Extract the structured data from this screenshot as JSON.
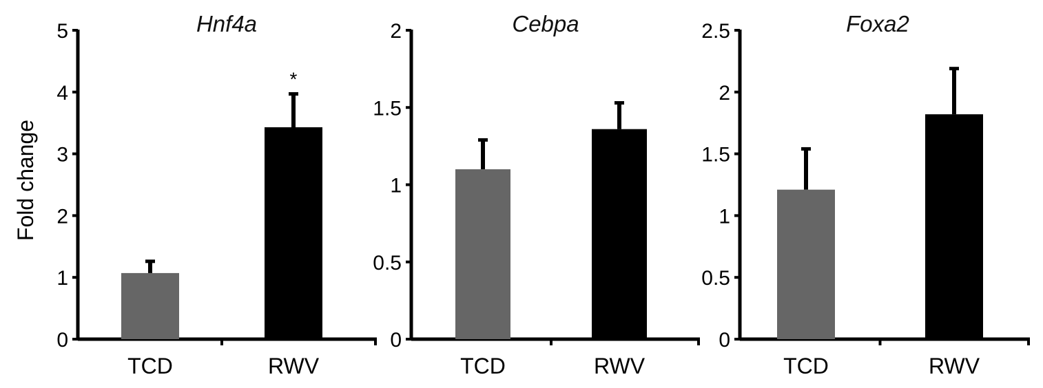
{
  "figure": {
    "ylabel": "Fold change"
  },
  "chart_data": [
    {
      "type": "bar",
      "title": "Hnf4a",
      "categories": [
        "TCD",
        "RWV"
      ],
      "values": [
        1.07,
        3.43
      ],
      "errors": [
        0.19,
        0.54
      ],
      "colors": [
        "#666666",
        "#000000"
      ],
      "significance": [
        "",
        "*"
      ],
      "ylim": [
        0,
        5
      ],
      "yticks": [
        0,
        1,
        2,
        3,
        4,
        5
      ],
      "ytick_labels": [
        "0",
        "1",
        "2",
        "3",
        "4",
        "5"
      ],
      "ylabel": "Fold change",
      "grid": false
    },
    {
      "type": "bar",
      "title": "Cebpa",
      "categories": [
        "TCD",
        "RWV"
      ],
      "values": [
        1.1,
        1.36
      ],
      "errors": [
        0.19,
        0.17
      ],
      "colors": [
        "#666666",
        "#000000"
      ],
      "significance": [
        "",
        ""
      ],
      "ylim": [
        0,
        2
      ],
      "yticks": [
        0,
        0.5,
        1,
        1.5,
        2
      ],
      "ytick_labels": [
        "0",
        "0.5",
        "1",
        "1.5",
        "2"
      ],
      "ylabel": "",
      "grid": false
    },
    {
      "type": "bar",
      "title": "Foxa2",
      "categories": [
        "TCD",
        "RWV"
      ],
      "values": [
        1.21,
        1.82
      ],
      "errors": [
        0.33,
        0.37
      ],
      "colors": [
        "#666666",
        "#000000"
      ],
      "significance": [
        "",
        ""
      ],
      "ylim": [
        0,
        2.5
      ],
      "yticks": [
        0,
        0.5,
        1,
        1.5,
        2,
        2.5
      ],
      "ytick_labels": [
        "0",
        "0.5",
        "1",
        "1.5",
        "2",
        "2.5"
      ],
      "ylabel": "",
      "grid": false
    }
  ]
}
